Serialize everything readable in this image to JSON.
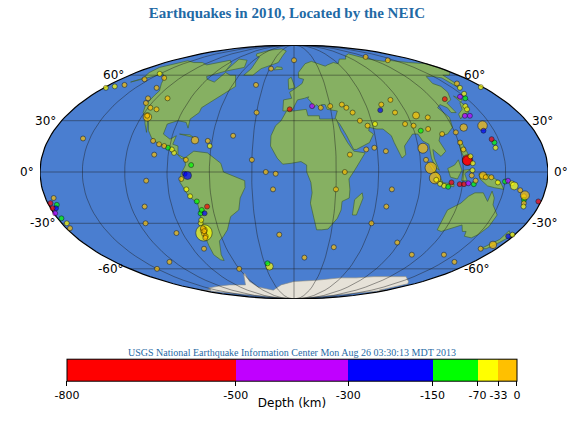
{
  "chart_data": {
    "type": "map",
    "title": "Earthquakes in 2010, Located by the NEIC",
    "subtitle": "USGS National Earthquake Information Center Mon Aug 26 03:30:13 MDT 2013",
    "grid": true,
    "tick_labels": "y",
    "xlim": [
      -180,
      180
    ],
    "ylim": [
      -90,
      90
    ],
    "xticks": [
      -150,
      -120,
      -90,
      -60,
      -30,
      0,
      30,
      60,
      90,
      120,
      150
    ],
    "yticks": [
      {
        "value": 60,
        "label": "60°"
      },
      {
        "value": 30,
        "label": "30°"
      },
      {
        "value": 0,
        "label": "0°"
      },
      {
        "value": -30,
        "label": "-30°"
      },
      {
        "value": -60,
        "label": "-60°"
      }
    ],
    "lon": [
      -72.7,
      -71.9,
      -72,
      -73,
      -72.5,
      -73.5,
      -71.9,
      -72.3,
      -71,
      -70,
      -68.5,
      -67,
      -64,
      -70.8,
      -75,
      -77,
      -80,
      -77.5,
      -73,
      -77,
      -75.5,
      -86,
      -88,
      -91,
      -94,
      -98,
      -103,
      -115.3,
      -116,
      -72.5,
      -63,
      -61,
      -125,
      -127,
      -130,
      -137,
      -150,
      -155,
      -165,
      -172,
      -178,
      178,
      -155,
      -112,
      -118,
      -110,
      161,
      157,
      153,
      149,
      146,
      142,
      141,
      143.5,
      139,
      135,
      128.4,
      120.7,
      130.5,
      123.5,
      123.3,
      122,
      126,
      127,
      121,
      126.5,
      97,
      100.1,
      101,
      104,
      107,
      110,
      112,
      118,
      121,
      124,
      128,
      129,
      126,
      134,
      136,
      140,
      145,
      150,
      152,
      155,
      157,
      162,
      166,
      167,
      168,
      166.5,
      169,
      94,
      93,
      145.5,
      146,
      142,
      145,
      -174,
      -174,
      -176,
      -178,
      -178.5,
      -179,
      -177,
      -176,
      -177,
      178,
      172.2,
      176,
      178,
      166,
      161,
      96.6,
      81,
      70,
      62,
      56,
      51,
      47,
      43,
      40,
      30,
      22,
      15,
      91,
      95,
      73,
      85,
      105,
      101,
      83,
      110,
      -3.5,
      -30,
      -37,
      -15,
      -13,
      -20,
      -30,
      -45,
      -12,
      10,
      35,
      60,
      68,
      70,
      66,
      58,
      52,
      88,
      110,
      140,
      -115,
      -110,
      -105,
      -100,
      -125,
      -150,
      -25.9,
      -27,
      -60,
      -80,
      -95,
      30,
      36,
      40,
      -28,
      0,
      120,
      140
    ],
    "lat": [
      -35.9,
      -34.3,
      -33,
      -36.5,
      -38,
      -39,
      -34.8,
      -30,
      -28,
      -24,
      -22,
      -24,
      -20,
      -17,
      -14,
      -10,
      -4,
      -1,
      4,
      7,
      -2,
      11,
      13,
      14,
      15,
      16,
      18,
      32.3,
      33,
      18.4,
      18,
      15,
      41,
      44,
      51,
      58,
      61,
      57,
      53,
      52,
      51,
      51.5,
      19.4,
      37,
      38,
      44,
      54,
      51,
      47,
      44,
      45,
      39,
      37,
      27,
      33,
      33,
      25.9,
      23,
      43.5,
      6.9,
      6.5,
      13,
      9,
      5,
      17,
      1,
      2.4,
      -3.5,
      -4.5,
      -6.8,
      -8,
      -8.5,
      -6,
      -7,
      -7,
      -6.5,
      -7,
      -5,
      -2,
      -2,
      -3,
      -3,
      -6,
      -5.5,
      -5,
      -6.5,
      -8,
      -10.5,
      -14,
      -16,
      -18,
      -13.5,
      -20,
      7,
      13.7,
      14,
      17,
      24,
      19,
      -15,
      -19,
      -21,
      -18,
      -21,
      -24,
      -27,
      -30,
      -33,
      -17,
      -43.5,
      -38,
      -37,
      -46,
      -55,
      33.2,
      35,
      36.5,
      28,
      27,
      30,
      35,
      38,
      40,
      39,
      38,
      39,
      27,
      24,
      40,
      28,
      32,
      25,
      43,
      22,
      37,
      35,
      53,
      -10,
      -1,
      0,
      7,
      21,
      -37,
      -52,
      -45,
      -30,
      -20,
      -10,
      12,
      14,
      13,
      -42,
      -50,
      -50,
      -30,
      -20,
      -5,
      10,
      -55,
      -60,
      -58.2,
      -56,
      -60,
      -46,
      -36,
      -10,
      0,
      10,
      65,
      72,
      75,
      72
    ],
    "depth": [
      -35,
      -18,
      -25,
      -20,
      -15,
      -25,
      -30,
      -40,
      -50,
      -100,
      -120,
      -180,
      -540,
      -140,
      -40,
      -60,
      -30,
      -160,
      -140,
      -30,
      -200,
      -40,
      -60,
      -80,
      -20,
      -30,
      -15,
      -10,
      -12,
      -13,
      -30,
      -40,
      -20,
      -10,
      -10,
      -10,
      -40,
      -30,
      -25,
      -35,
      -60,
      -40,
      -10,
      -5,
      -10,
      -10,
      -30,
      -40,
      -60,
      -120,
      -350,
      -40,
      -50,
      -15,
      -400,
      -380,
      -22,
      -20,
      -580,
      -600,
      -610,
      -20,
      -40,
      -60,
      -30,
      -50,
      -30,
      -20,
      -40,
      -60,
      -60,
      -100,
      -600,
      -550,
      -600,
      -450,
      -120,
      -30,
      -20,
      -18,
      -25,
      -30,
      -40,
      -80,
      -450,
      -50,
      -35,
      -30,
      -40,
      -140,
      -30,
      -30,
      -50,
      -30,
      -25,
      -60,
      -120,
      -280,
      -550,
      -20,
      -80,
      -250,
      -600,
      -550,
      -480,
      -100,
      -40,
      -30,
      -580,
      -12,
      -200,
      -40,
      -20,
      -10,
      -17,
      -30,
      -200,
      -40,
      -20,
      -20,
      -15,
      -10,
      -10,
      -10,
      -20,
      -450,
      -15,
      -80,
      -20,
      -15,
      -10,
      -10,
      -20,
      -10,
      -620,
      -10,
      -10,
      -10,
      -10,
      -10,
      -10,
      -10,
      -10,
      -10,
      -10,
      -10,
      -10,
      -10,
      -10,
      -10,
      -10,
      -10,
      -10,
      -10,
      -10,
      -10,
      -10,
      -10,
      -10,
      -10,
      -35,
      -100,
      -10,
      -20,
      -10,
      -10,
      -15,
      -10,
      -10,
      -10,
      -10,
      -10
    ],
    "magnitude": [
      8.8,
      6.9,
      5.5,
      6.2,
      5.8,
      5.5,
      6.2,
      5.3,
      5.2,
      5.4,
      5.5,
      5.3,
      5.2,
      5.4,
      5.3,
      5.2,
      5.1,
      5.0,
      5.0,
      5.4,
      7.1,
      5.4,
      5.6,
      5.2,
      5.3,
      5.2,
      5.4,
      7.2,
      5.0,
      7.0,
      5.1,
      5.0,
      6.5,
      5.2,
      5.5,
      5.2,
      5.1,
      5.3,
      5.5,
      5.4,
      6.2,
      5.6,
      5.0,
      4.9,
      5.0,
      4.8,
      5.5,
      5.4,
      5.6,
      5.4,
      5.2,
      5.6,
      5.5,
      7.4,
      5.5,
      5.0,
      7.0,
      6.4,
      5.2,
      7.6,
      7.4,
      5.3,
      5.8,
      5.4,
      5.2,
      5.6,
      7.8,
      7.8,
      5.5,
      5.3,
      5.4,
      5.2,
      5.4,
      5.3,
      5.5,
      5.6,
      5.5,
      6.0,
      5.8,
      7.0,
      5.4,
      5.5,
      5.4,
      5.6,
      5.3,
      5.7,
      7.1,
      5.6,
      5.8,
      5.5,
      5.7,
      7.3,
      5.5,
      5.4,
      7.5,
      5.5,
      5.3,
      5.1,
      5.2,
      5.6,
      5.5,
      5.4,
      5.6,
      5.5,
      5.3,
      5.2,
      5.5,
      5.3,
      5.5,
      7.0,
      5.0,
      5.1,
      5.4,
      5.5,
      6.9,
      5.2,
      5.4,
      5.0,
      5.3,
      5.0,
      4.9,
      5.1,
      5.0,
      5.2,
      5.0,
      5.1,
      5.0,
      5.3,
      5.2,
      5.0,
      5.0,
      5.1,
      4.9,
      4.7,
      6.3,
      5.1,
      5.0,
      5.0,
      5.2,
      5.0,
      5.3,
      5.0,
      5.0,
      5.1,
      5.0,
      5.2,
      5.1,
      5.0,
      5.2,
      5.0,
      5.4,
      5.0,
      5.1,
      5.0,
      5.4,
      5.2,
      5.3,
      5.1,
      5.0,
      5.1,
      7.0,
      5.3,
      5.2,
      5.0,
      5.0,
      5.0,
      5.0,
      5.1,
      5.0,
      5.0,
      5.0,
      4.8
    ],
    "colorbar": {
      "title": "Depth (km)",
      "range": [
        -800,
        0
      ],
      "ticks": [
        -800,
        -500,
        -300,
        -150,
        -70,
        -33,
        0
      ],
      "colors": [
        "#ff0000",
        "#c000ff",
        "#0000ff",
        "#00ff00",
        "#ffff00",
        "#ffc000"
      ]
    }
  }
}
